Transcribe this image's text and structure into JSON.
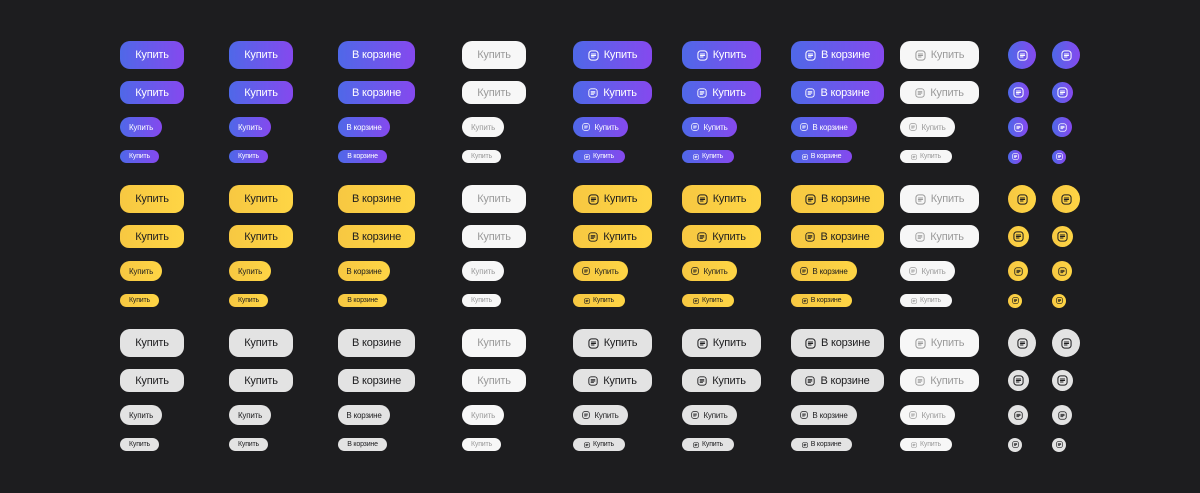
{
  "labels": {
    "buy": "Купить",
    "in_cart": "В корзине"
  },
  "icon": "cart-list-icon",
  "themes": {
    "purple": {
      "from": "#4f68e8",
      "to": "#8549ee",
      "text": "#ffffff"
    },
    "yellow": {
      "from": "#f7c842",
      "to": "#fed545",
      "text": "#1d1d1f"
    },
    "gray": {
      "bg": "#e3e3e3",
      "text": "#1d1d1f"
    },
    "white": {
      "bg": "#f7f7f7",
      "text": "#9a9a9a"
    }
  },
  "background": "#1d1d1f",
  "groups": [
    {
      "name": "purple-group",
      "theme": "purple"
    },
    {
      "name": "yellow-group",
      "theme": "yellow"
    },
    {
      "name": "gray-group",
      "theme": "gray"
    }
  ],
  "sizes": [
    "L",
    "M",
    "S",
    "XS"
  ],
  "columns": [
    {
      "kind": "text",
      "label": "buy",
      "variant": "themed"
    },
    {
      "kind": "text",
      "label": "buy",
      "variant": "themed"
    },
    {
      "kind": "text",
      "label": "in_cart",
      "variant": "themed"
    },
    {
      "kind": "text",
      "label": "buy",
      "variant": "white"
    },
    {
      "kind": "icon-text",
      "label": "buy",
      "variant": "themed"
    },
    {
      "kind": "icon-text",
      "label": "buy",
      "variant": "themed"
    },
    {
      "kind": "icon-text",
      "label": "in_cart",
      "variant": "themed"
    },
    {
      "kind": "icon-text",
      "label": "buy",
      "variant": "white"
    },
    {
      "kind": "icon",
      "variant": "themed"
    },
    {
      "kind": "icon",
      "variant": "themed"
    }
  ]
}
